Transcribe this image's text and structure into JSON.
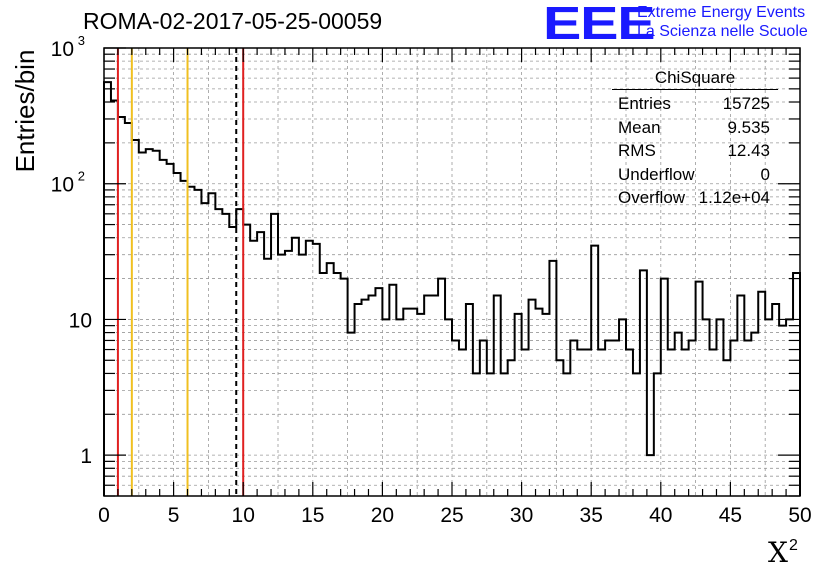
{
  "header": {
    "run_title": "ROMA-02-2017-05-25-00059",
    "logo_text": "EEE",
    "logo_line1": "Extreme Energy Events",
    "logo_line2": "La Scienza nelle Scuole"
  },
  "stats": {
    "title": "ChiSquare",
    "rows": [
      {
        "label": "Entries",
        "value": "15725"
      },
      {
        "label": "Mean",
        "value": "9.535"
      },
      {
        "label": "RMS",
        "value": "12.43"
      },
      {
        "label": "Underflow",
        "value": "0"
      },
      {
        "label": "Overflow",
        "value": "1.12e+04"
      }
    ]
  },
  "chart_data": {
    "type": "histogram",
    "title": "ROMA-02-2017-05-25-00059",
    "xlabel": "X",
    "xlabel_superscript": "2",
    "ylabel": "Entries/bin",
    "xlim": [
      0,
      50
    ],
    "ylim": [
      0.5,
      1000
    ],
    "yscale": "log",
    "grid": true,
    "bin_width": 0.5,
    "x_ticks": [
      0,
      5,
      10,
      15,
      20,
      25,
      30,
      35,
      40,
      45,
      50
    ],
    "y_ticks": [
      {
        "value": 1,
        "label": "1"
      },
      {
        "value": 10,
        "label": "10"
      },
      {
        "value": 100,
        "label": "10",
        "exp": "2"
      },
      {
        "value": 1000,
        "label": "10",
        "exp": "3"
      }
    ],
    "values": [
      560,
      410,
      310,
      280,
      210,
      170,
      180,
      175,
      150,
      140,
      120,
      105,
      95,
      90,
      72,
      85,
      65,
      60,
      48,
      65,
      50,
      38,
      44,
      28,
      60,
      30,
      32,
      40,
      30,
      38,
      36,
      22,
      26,
      22,
      20,
      8,
      13,
      14,
      15,
      17,
      10,
      18,
      10,
      12,
      12,
      11,
      15,
      15,
      20,
      10,
      7,
      6,
      13,
      4,
      7,
      4,
      15,
      4,
      5,
      11,
      6,
      14,
      12,
      11,
      27,
      5,
      4,
      7,
      6,
      6,
      35,
      6,
      7,
      7,
      10,
      6,
      4,
      23,
      1,
      4,
      20,
      6,
      8,
      6,
      7,
      19,
      10,
      6,
      10,
      5,
      7,
      15,
      7,
      8,
      16,
      10,
      13,
      9,
      10,
      22
    ],
    "vertical_lines": [
      {
        "x": 1,
        "color": "#e02020",
        "style": "solid"
      },
      {
        "x": 2,
        "color": "#f0c020",
        "style": "solid"
      },
      {
        "x": 6,
        "color": "#f0c020",
        "style": "solid"
      },
      {
        "x": 9.5,
        "color": "#000000",
        "style": "dashed"
      },
      {
        "x": 10,
        "color": "#e02020",
        "style": "solid"
      }
    ]
  }
}
